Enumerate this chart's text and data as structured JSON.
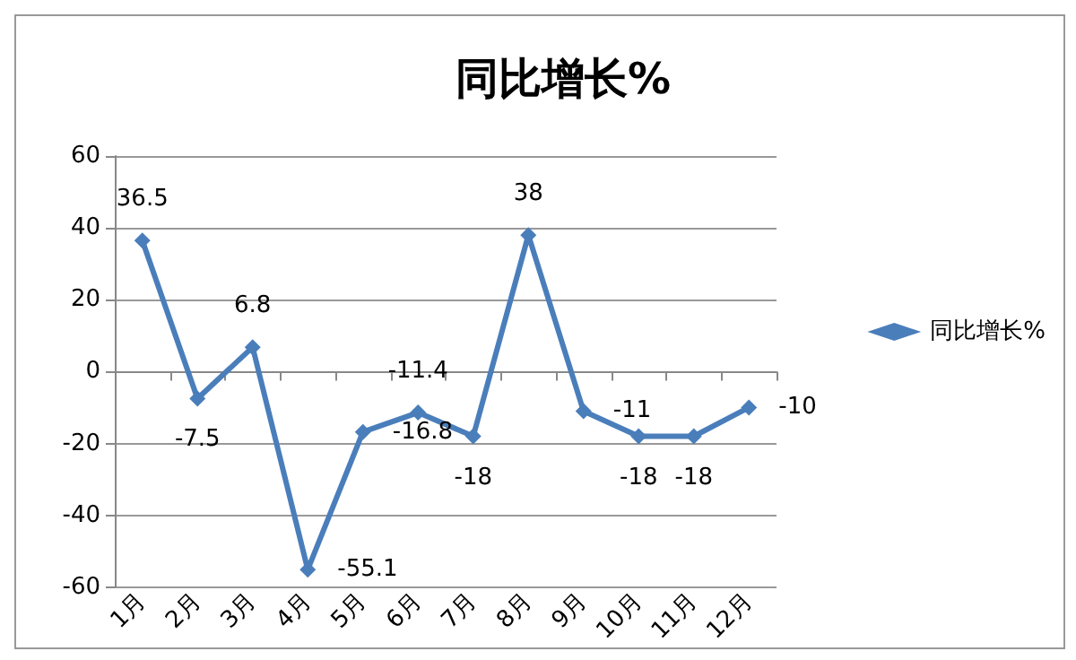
{
  "chart_data": {
    "type": "line",
    "title": "同比增长%",
    "categories": [
      "1月",
      "2月",
      "3月",
      "4月",
      "5月",
      "6月",
      "7月",
      "8月",
      "9月",
      "10月",
      "11月",
      "12月"
    ],
    "series": [
      {
        "name": "同比增长%",
        "color": "#4a7ebb",
        "values": [
          36.5,
          -7.5,
          6.8,
          -55.1,
          -16.8,
          -11.4,
          -18,
          38,
          -11,
          -18,
          -18,
          -10
        ]
      }
    ],
    "ylim": [
      -60,
      60
    ],
    "yticks": [
      -60,
      -40,
      -20,
      0,
      20,
      40,
      60
    ],
    "grid": "y",
    "legend": "right",
    "marker": "diamond",
    "line_style": "solid",
    "data_labels": true
  }
}
